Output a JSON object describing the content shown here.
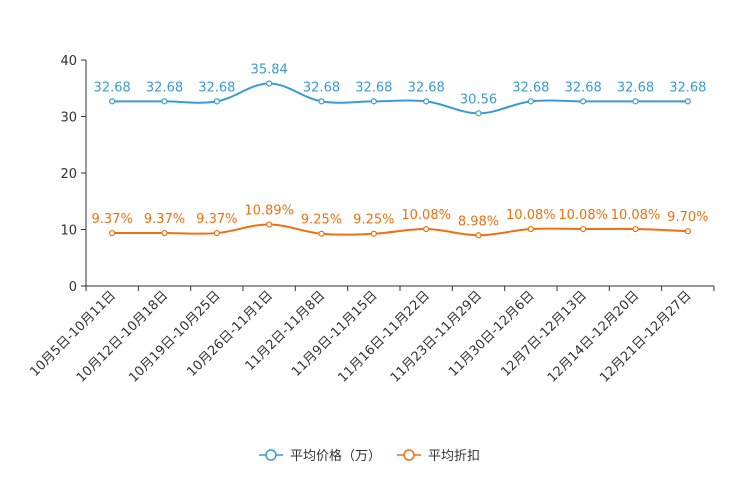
{
  "chart_data": {
    "type": "line",
    "categories": [
      "10月5日-10月11日",
      "10月12日-10月18日",
      "10月19日-10月25日",
      "10月26日-11月1日",
      "11月2日-11月8日",
      "11月9日-11月15日",
      "11月16日-11月22日",
      "11月23日-11月29日",
      "11月30日-12月6日",
      "12月7日-12月13日",
      "12月14日-12月20日",
      "12月21日-12月27日"
    ],
    "series": [
      {
        "name": "平均价格（万）",
        "color": "#3a9bd5",
        "values": [
          32.68,
          32.68,
          32.68,
          35.84,
          32.68,
          32.68,
          32.68,
          30.56,
          32.68,
          32.68,
          32.68,
          32.68
        ],
        "labels": [
          "32.68",
          "32.68",
          "32.68",
          "35.84",
          "32.68",
          "32.68",
          "32.68",
          "30.56",
          "32.68",
          "32.68",
          "32.68",
          "32.68"
        ]
      },
      {
        "name": "平均折扣",
        "color": "#f07010",
        "values": [
          9.37,
          9.37,
          9.37,
          10.89,
          9.25,
          9.25,
          10.08,
          8.98,
          10.08,
          10.08,
          10.08,
          9.7
        ],
        "labels": [
          "9.37%",
          "9.37%",
          "9.37%",
          "10.89%",
          "9.25%",
          "9.25%",
          "10.08%",
          "8.98%",
          "10.08%",
          "10.08%",
          "10.08%",
          "9.70%"
        ]
      }
    ],
    "yticks": [
      "0",
      "10",
      "20",
      "30",
      "40"
    ],
    "ylim": [
      0,
      40
    ],
    "title": "",
    "xlabel": "",
    "ylabel": "",
    "legend_position": "bottom-center"
  }
}
